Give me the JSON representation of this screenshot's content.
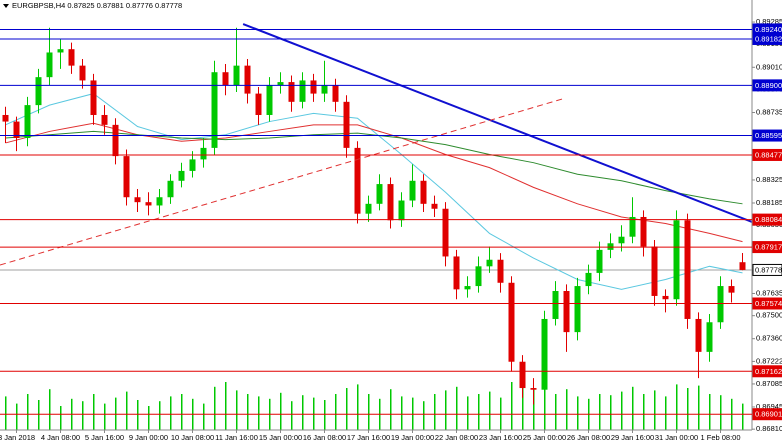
{
  "chart_data": {
    "type": "candlestick",
    "title": "EURGBPSB,H4  0.87825 0.87881 0.87776 0.87778",
    "categories": [
      null,
      "3 Jan 2018",
      null,
      null,
      null,
      "4 Jan 08:00",
      null,
      null,
      null,
      "5 Jan 16:00",
      null,
      null,
      null,
      "9 Jan 00:00",
      null,
      null,
      null,
      "10 Jan 08:00",
      null,
      null,
      null,
      "11 Jan 16:00",
      null,
      null,
      null,
      "15 Jan 00:00",
      null,
      null,
      null,
      "16 Jan 08:00",
      null,
      null,
      null,
      "17 Jan 16:00",
      null,
      null,
      null,
      "19 Jan 00:00",
      null,
      null,
      null,
      "22 Jan 08:00",
      null,
      null,
      null,
      "23 Jan 16:00",
      null,
      null,
      null,
      "25 Jan 00:00",
      null,
      null,
      null,
      "26 Jan 08:00",
      null,
      null,
      null,
      "29 Jan 16:00",
      null,
      null,
      null,
      "31 Jan 00:00",
      null,
      null,
      null,
      "1 Feb 08:00",
      null,
      null
    ],
    "open": [
      0.8872,
      0.8868,
      0.8858,
      0.8878,
      0.8895,
      0.891,
      0.8912,
      0.8902,
      0.8893,
      0.8872,
      0.8866,
      0.8847,
      0.8822,
      0.8819,
      0.8817,
      0.8822,
      0.8832,
      0.8838,
      0.8845,
      0.8852,
      0.8898,
      0.889,
      0.8902,
      0.8885,
      0.8872,
      0.889,
      0.8892,
      0.888,
      0.8893,
      0.8885,
      0.889,
      0.888,
      0.8852,
      0.8812,
      0.8818,
      0.883,
      0.8808,
      0.882,
      0.8832,
      0.8818,
      0.8815,
      0.8786,
      0.8766,
      0.8768,
      0.878,
      0.8784,
      0.877,
      0.8722,
      0.8706,
      0.8705,
      0.8748,
      0.8765,
      0.874,
      0.8768,
      0.8776,
      0.879,
      0.8794,
      0.8798,
      0.881,
      0.8792,
      0.8762,
      0.876,
      0.8808,
      0.8748,
      0.8728,
      0.8746,
      0.8768,
      0.87825
    ],
    "high": [
      0.8877,
      0.8871,
      0.8883,
      0.89,
      0.8925,
      0.8918,
      0.8916,
      0.8906,
      0.8897,
      0.8878,
      0.887,
      0.8851,
      0.8827,
      0.8825,
      0.8827,
      0.8836,
      0.8843,
      0.885,
      0.8858,
      0.8905,
      0.8903,
      0.8925,
      0.8906,
      0.8889,
      0.8895,
      0.8898,
      0.8896,
      0.8898,
      0.8897,
      0.8905,
      0.8894,
      0.8884,
      0.8856,
      0.8823,
      0.8836,
      0.8834,
      0.8825,
      0.8842,
      0.8836,
      0.8823,
      0.8819,
      0.879,
      0.8774,
      0.8786,
      0.8792,
      0.8788,
      0.8774,
      0.8726,
      0.8712,
      0.8753,
      0.8771,
      0.8769,
      0.8773,
      0.8781,
      0.8795,
      0.88,
      0.8805,
      0.8822,
      0.8814,
      0.8796,
      0.8766,
      0.8814,
      0.8812,
      0.8752,
      0.8751,
      0.8774,
      0.8772,
      0.87881
    ],
    "low": [
      0.8855,
      0.885,
      0.8853,
      0.8873,
      0.889,
      0.89,
      0.8897,
      0.8888,
      0.8866,
      0.886,
      0.8842,
      0.8817,
      0.8813,
      0.8811,
      0.8812,
      0.8818,
      0.8828,
      0.8834,
      0.884,
      0.8848,
      0.8884,
      0.8886,
      0.8879,
      0.8866,
      0.8868,
      0.8885,
      0.8874,
      0.8876,
      0.888,
      0.888,
      0.8874,
      0.8846,
      0.8806,
      0.8807,
      0.8814,
      0.8803,
      0.8804,
      0.8816,
      0.8813,
      0.881,
      0.878,
      0.876,
      0.8761,
      0.8764,
      0.8776,
      0.8764,
      0.8716,
      0.87,
      0.8696,
      0.87,
      0.8744,
      0.8728,
      0.8735,
      0.8763,
      0.8771,
      0.8785,
      0.8789,
      0.8794,
      0.8786,
      0.8756,
      0.8752,
      0.8756,
      0.8742,
      0.8712,
      0.8722,
      0.8742,
      0.8758,
      0.87776
    ],
    "close": [
      0.8868,
      0.8858,
      0.8878,
      0.8895,
      0.891,
      0.8912,
      0.8902,
      0.8893,
      0.8872,
      0.8866,
      0.8847,
      0.8822,
      0.8819,
      0.8817,
      0.8822,
      0.8832,
      0.8838,
      0.8845,
      0.8852,
      0.8898,
      0.889,
      0.8902,
      0.8885,
      0.8872,
      0.889,
      0.8892,
      0.888,
      0.8893,
      0.8885,
      0.889,
      0.888,
      0.8852,
      0.8812,
      0.8818,
      0.883,
      0.8808,
      0.882,
      0.8832,
      0.8818,
      0.8815,
      0.8786,
      0.8766,
      0.8768,
      0.878,
      0.8784,
      0.877,
      0.8722,
      0.8706,
      0.8705,
      0.8748,
      0.8765,
      0.874,
      0.8768,
      0.8776,
      0.879,
      0.8794,
      0.8798,
      0.881,
      0.8792,
      0.8762,
      0.876,
      0.8808,
      0.8748,
      0.8728,
      0.8746,
      0.8768,
      0.8764,
      0.87778
    ],
    "up_color": "#00c800",
    "down_color": "#e00000",
    "volume": [
      28,
      22,
      30,
      25,
      34,
      20,
      26,
      24,
      30,
      22,
      27,
      32,
      25,
      20,
      24,
      28,
      30,
      26,
      22,
      36,
      40,
      33,
      30,
      28,
      26,
      31,
      24,
      29,
      27,
      25,
      30,
      35,
      38,
      30,
      26,
      34,
      28,
      27,
      24,
      30,
      33,
      36,
      28,
      30,
      32,
      27,
      40,
      38,
      35,
      36,
      30,
      34,
      28,
      26,
      30,
      29,
      32,
      36,
      30,
      33,
      28,
      38,
      35,
      37,
      30,
      29,
      26,
      22
    ],
    "volume_color": "#00c800",
    "series": [
      {
        "name": "MA fast",
        "color": "#5bc8e0",
        "x": [
          0,
          4,
          8,
          12,
          16,
          20,
          24,
          28,
          32,
          36,
          40,
          44,
          48,
          52,
          56,
          60,
          64,
          67
        ],
        "values": [
          0.8866,
          0.8878,
          0.8885,
          0.8865,
          0.8857,
          0.886,
          0.8868,
          0.8873,
          0.887,
          0.8848,
          0.8825,
          0.88,
          0.8785,
          0.8772,
          0.8766,
          0.8772,
          0.878,
          0.8776
        ]
      },
      {
        "name": "MA medium",
        "color": "#e03030",
        "x": [
          0,
          4,
          8,
          12,
          16,
          20,
          24,
          28,
          32,
          36,
          40,
          44,
          48,
          52,
          56,
          60,
          64,
          67
        ],
        "values": [
          0.8855,
          0.8862,
          0.8867,
          0.886,
          0.8856,
          0.8858,
          0.8862,
          0.8866,
          0.8866,
          0.8858,
          0.8848,
          0.884,
          0.8828,
          0.8818,
          0.881,
          0.8806,
          0.88,
          0.8795
        ]
      },
      {
        "name": "MA slow",
        "color": "#2e8b2e",
        "x": [
          0,
          4,
          8,
          12,
          16,
          20,
          24,
          28,
          32,
          36,
          40,
          44,
          48,
          52,
          56,
          60,
          64,
          67
        ],
        "values": [
          0.8858,
          0.886,
          0.8862,
          0.886,
          0.8858,
          0.8857,
          0.8858,
          0.886,
          0.8861,
          0.8858,
          0.8854,
          0.8848,
          0.8843,
          0.8836,
          0.8832,
          0.8826,
          0.8821,
          0.8818
        ]
      }
    ],
    "ylim": [
      0.86805,
      0.89419
    ],
    "yticks": [
      0.89285,
      {
        "value": 0.8915,
        "label": "0.89150"
      },
      {
        "value": 0.8901,
        "label": "0.89010"
      },
      0.88875,
      0.88735,
      0.88325,
      0.88185,
      {
        "value": 0.8805,
        "label": "0.88050"
      },
      0.87635,
      {
        "value": 0.875,
        "label": "0.87500"
      },
      {
        "value": 0.8736,
        "label": "0.87360"
      },
      0.87222,
      0.87085,
      0.86945,
      {
        "value": 0.8681,
        "label": "0.86810"
      }
    ],
    "levels": [
      {
        "value": 0.8924,
        "label": "0.89240",
        "color": "#0000d0"
      },
      {
        "value": 0.89182,
        "label": "0.89182",
        "color": "#0000d0"
      },
      {
        "value": 0.889,
        "label": "0.88900",
        "color": "#0000d0"
      },
      {
        "value": 0.88595,
        "label": "0.88595",
        "color": "#0000d0"
      },
      {
        "value": 0.88477,
        "label": "0.88477",
        "color": "#e00000"
      },
      {
        "value": 0.88084,
        "label": "0.88084",
        "color": "#e00000"
      },
      {
        "value": 0.87917,
        "label": "0.87917",
        "color": "#e00000"
      },
      {
        "value": 0.87574,
        "label": "0.87574",
        "color": "#e00000"
      },
      {
        "value": 0.87162,
        "label": "0.87162",
        "color": "#e00000"
      },
      {
        "value": 0.86901,
        "label": "0.86901",
        "color": "#e00000"
      }
    ],
    "current_price": {
      "value": 0.87778,
      "label": "0.87778",
      "color": "#a0a0a0"
    },
    "trendlines": [
      {
        "color": "#1010d0",
        "dashed": false,
        "from": [
          21.6,
          0.89273
        ],
        "to": [
          67.9,
          0.88069
        ]
      },
      {
        "color": "#e03030",
        "dashed": true,
        "from": [
          -0.5,
          0.87808
        ],
        "to": [
          50.9,
          0.88823
        ]
      }
    ]
  }
}
